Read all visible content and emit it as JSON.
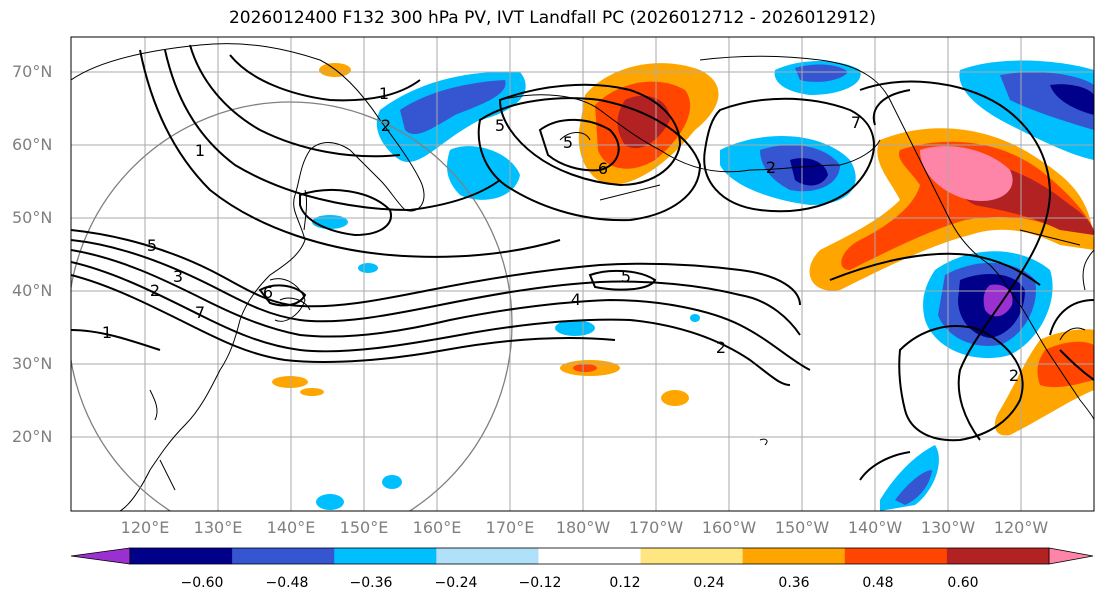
{
  "title": "2026012400 F132 300 hPa PV, IVT Landfall PC (2026012712 - 2026012912)",
  "lat_labels": [
    "70°N",
    "60°N",
    "50°N",
    "40°N",
    "30°N",
    "20°N"
  ],
  "lon_labels": [
    "120°E",
    "130°E",
    "140°E",
    "150°E",
    "160°E",
    "170°E",
    "180°W",
    "170°W",
    "160°W",
    "150°W",
    "140°W",
    "130°W",
    "120°W"
  ],
  "colorbar": {
    "ticks": [
      "−0.60",
      "−0.48",
      "−0.36",
      "−0.24",
      "−0.12",
      "0.12",
      "0.24",
      "0.36",
      "0.48",
      "0.60"
    ],
    "colors": [
      "#9b30d0",
      "#00008b",
      "#3655d0",
      "#00bfff",
      "#b0e0fa",
      "#ffffff",
      "#ffe680",
      "#ffa500",
      "#ff4500",
      "#b22222",
      "#ff85a8"
    ]
  },
  "contour_labels": [
    "1",
    "2",
    "5",
    "5",
    "6",
    "2",
    "7",
    "5",
    "3",
    "2",
    "6",
    "1",
    "5",
    "4",
    "2",
    "2",
    "1",
    "7"
  ],
  "colors": {
    "coast": "#000000",
    "grid": "#aaaaaa",
    "circle": "#808080"
  }
}
